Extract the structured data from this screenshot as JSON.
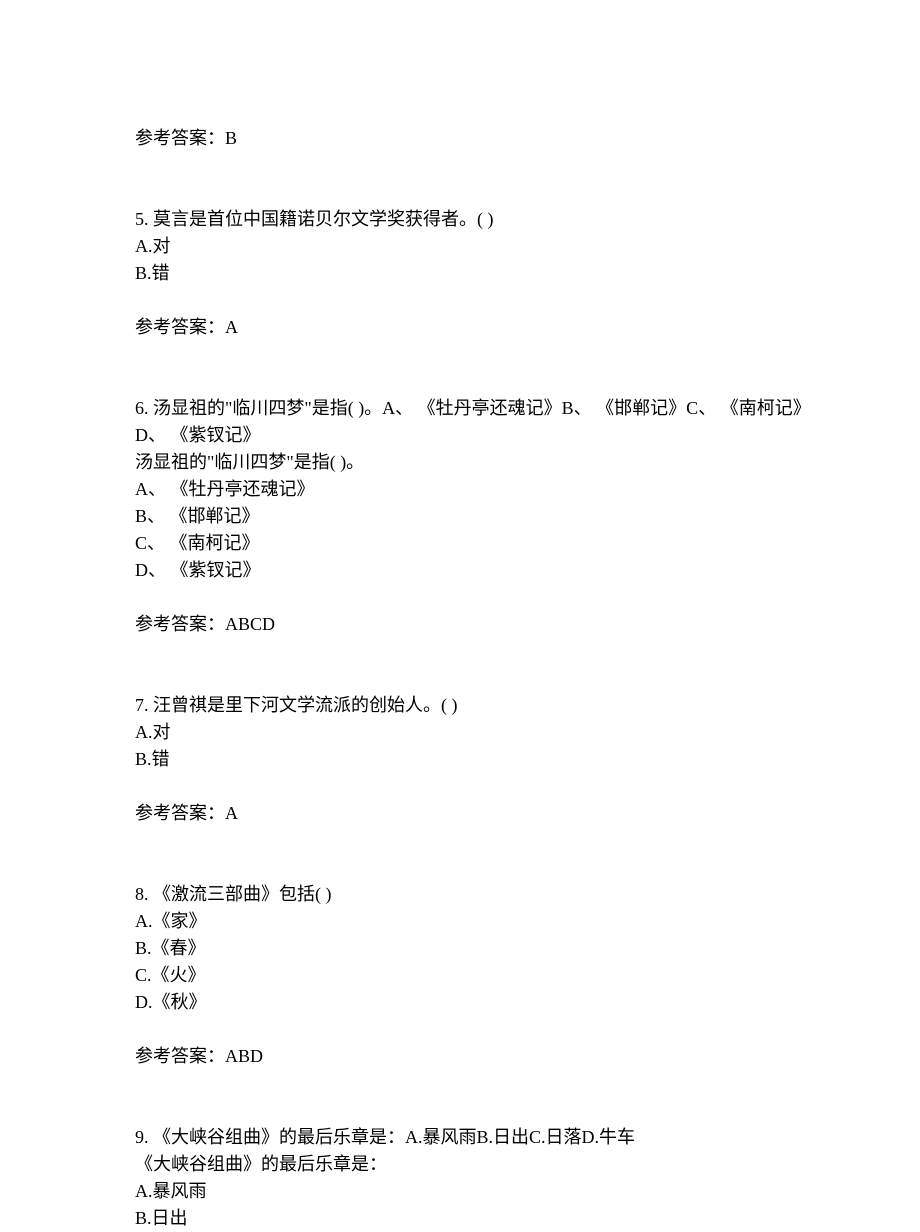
{
  "prev_answer": "参考答案：B",
  "q5": {
    "text": "5. 莫言是首位中国籍诺贝尔文学奖获得者。(  )",
    "opt_a": "A.对",
    "opt_b": "B.错",
    "answer": "参考答案：A"
  },
  "q6": {
    "line1": "6. 汤显祖的\"临川四梦\"是指( )。A、 《牡丹亭还魂记》B、 《邯郸记》C、 《南柯记》D、 《紫钗记》",
    "line2": "汤显祖的\"临川四梦\"是指( )。",
    "opt_a": "A、 《牡丹亭还魂记》",
    "opt_b": "B、 《邯郸记》",
    "opt_c": "C、 《南柯记》",
    "opt_d": "D、 《紫钗记》",
    "answer": "参考答案：ABCD"
  },
  "q7": {
    "text": "7. 汪曾祺是里下河文学流派的创始人。(  )",
    "opt_a": "A.对",
    "opt_b": "B.错",
    "answer": "参考答案：A"
  },
  "q8": {
    "text": "8. 《激流三部曲》包括(  )",
    "opt_a": "A.《家》",
    "opt_b": "B.《春》",
    "opt_c": "C.《火》",
    "opt_d": "D.《秋》",
    "answer": "参考答案：ABD"
  },
  "q9": {
    "line1": "9. 《大峡谷组曲》的最后乐章是：A.暴风雨B.日出C.日落D.牛车",
    "line2": "《大峡谷组曲》的最后乐章是：",
    "opt_a": "A.暴风雨",
    "opt_b": "B.日出"
  }
}
